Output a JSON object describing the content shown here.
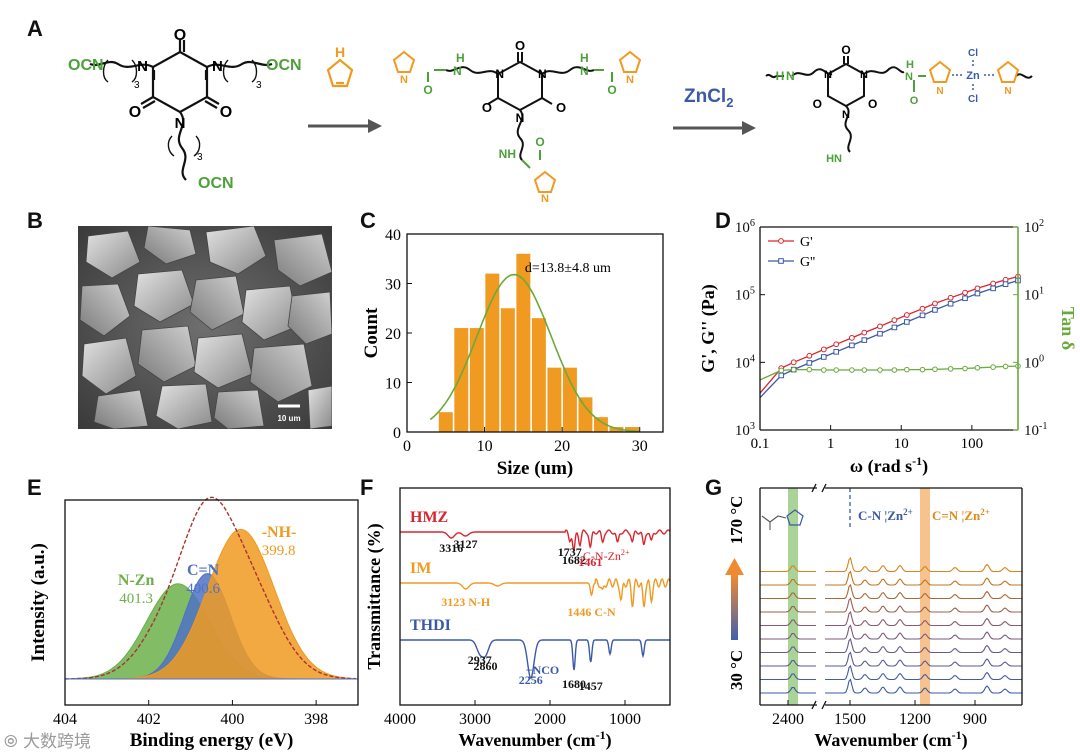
{
  "panel_labels": {
    "A": "A",
    "B": "B",
    "C": "C",
    "D": "D",
    "E": "E",
    "F": "F",
    "G": "G"
  },
  "scheme": {
    "reactant_groups": [
      "OCN",
      "OCN",
      "OCN"
    ],
    "subscript": "3",
    "reagent_atom": "H",
    "catalyst_name": "ZnCl",
    "catalyst_sub": "2",
    "atoms": {
      "O": "O",
      "N": "N",
      "NH": "NH",
      "HN": "HN",
      "H": "H",
      "Cl": "Cl",
      "Zn": "Zn"
    }
  },
  "sem": {
    "scale_bar": "10 um"
  },
  "watermark": "大数跨境",
  "chart_data": [
    {
      "id": "C",
      "type": "bar",
      "xlabel": "Size (um)",
      "ylabel": "Count",
      "xlim": [
        0,
        33
      ],
      "ylim": [
        0,
        40
      ],
      "xticks": [
        0,
        10,
        20,
        30
      ],
      "yticks": [
        0,
        10,
        20,
        30,
        40
      ],
      "bin_centers": [
        5,
        7,
        9,
        11,
        13,
        15,
        17,
        19,
        21,
        23,
        25,
        27,
        29
      ],
      "counts": [
        4,
        21,
        21,
        32,
        25,
        36,
        23,
        13,
        13,
        7,
        3,
        1,
        1
      ],
      "fit_mean": 13.8,
      "fit_sd": 4.8,
      "fit_peak": 31.8,
      "annotation": "d=13.8±4.8 um",
      "colors": {
        "bar": "#f09a21",
        "fit": "#6aaa3a"
      }
    },
    {
      "id": "D",
      "type": "line",
      "xlabel": "ω (rad s",
      "xlabel_sup": "-1",
      "xlabel_end": ")",
      "ylabel": "G', G'' (Pa)",
      "y2label": "Tan δ",
      "xscale": "log",
      "yscale": "log",
      "xlim": [
        0.1,
        450
      ],
      "ylim": [
        1000,
        1000000
      ],
      "y2lim": [
        0.1,
        100
      ],
      "xtick_labels": [
        "0.1",
        "1",
        "10",
        "100"
      ],
      "ytick_labels": [
        {
          "base": "10",
          "exp": "3"
        },
        {
          "base": "10",
          "exp": "4"
        },
        {
          "base": "10",
          "exp": "5"
        },
        {
          "base": "10",
          "exp": "6"
        }
      ],
      "y2tick_labels": [
        {
          "base": "10",
          "exp": "-1"
        },
        {
          "base": "10",
          "exp": "0"
        },
        {
          "base": "10",
          "exp": "1"
        },
        {
          "base": "10",
          "exp": "2"
        }
      ],
      "legend": [
        "G'",
        "G''"
      ],
      "legend_position": "top-left",
      "x": [
        0.1,
        0.2,
        0.3,
        0.5,
        0.8,
        1.2,
        2,
        3,
        5,
        8,
        12,
        20,
        30,
        50,
        80,
        120,
        200,
        300,
        450
      ],
      "series": [
        {
          "name": "G'",
          "axis": "left",
          "color": "#d9262e",
          "values": [
            3500,
            8200,
            10000,
            12500,
            15500,
            18500,
            23000,
            27500,
            34000,
            42000,
            50000,
            62000,
            74000,
            90000,
            107000,
            124000,
            146000,
            166000,
            185000
          ]
        },
        {
          "name": "G''",
          "axis": "left",
          "color": "#3a5aa8",
          "values": [
            3000,
            6400,
            7800,
            9800,
            12000,
            14300,
            17800,
            21300,
            26500,
            32800,
            39500,
            49500,
            59500,
            73500,
            88500,
            104000,
            124000,
            143000,
            162000
          ]
        },
        {
          "name": "Tan δ",
          "axis": "right",
          "color": "#6aaa3a",
          "values": [
            0.55,
            0.76,
            0.78,
            0.78,
            0.77,
            0.77,
            0.77,
            0.77,
            0.77,
            0.77,
            0.78,
            0.78,
            0.79,
            0.8,
            0.81,
            0.83,
            0.85,
            0.87,
            0.88
          ]
        }
      ]
    },
    {
      "id": "E",
      "type": "area",
      "xlabel": "Binding energy (eV)",
      "ylabel": "Intensity (a.u.)",
      "xlim": [
        404,
        397
      ],
      "xticks": [
        404,
        402,
        400,
        398
      ],
      "peaks": [
        {
          "label": "N-Zn",
          "value": "401.3",
          "center": 401.3,
          "height": 0.56,
          "width": 0.75,
          "color": "#6cb04a"
        },
        {
          "label": "C=N",
          "value": "400.6",
          "center": 400.6,
          "height": 0.62,
          "width": 0.55,
          "color": "#4f72c4"
        },
        {
          "label": "-NH-",
          "value": "399.8",
          "center": 399.8,
          "height": 0.88,
          "width": 0.8,
          "color": "#f09a21"
        }
      ]
    },
    {
      "id": "F",
      "type": "line",
      "xlabel": "Wavenumber (cm",
      "xlabel_sup": "-1",
      "xlabel_end": ")",
      "ylabel": "Transmittance (%)",
      "xlim": [
        4000,
        400
      ],
      "xticks": [
        4000,
        3000,
        2000,
        1000
      ],
      "series": [
        {
          "name": "HMZ",
          "color": "#d9262e",
          "peaks": [
            {
              "text": "3316",
              "x": 3316
            },
            {
              "text": "3127",
              "x": 3127
            },
            {
              "text": "1737",
              "x": 1737
            },
            {
              "text": "1682",
              "x": 1682
            },
            {
              "text": "1461",
              "x": 1461
            }
          ],
          "extra_label": "C-N-Zn",
          "extra_sup": "2+"
        },
        {
          "name": "IM",
          "color": "#f09a21",
          "peaks": [
            {
              "text": "3123 N-H",
              "x": 3123
            },
            {
              "text": "1446 C-N",
              "x": 1446
            }
          ]
        },
        {
          "name": "THDI",
          "color": "#3a5aa8",
          "peaks": [
            {
              "text": "2937",
              "x": 2937
            },
            {
              "text": "2860",
              "x": 2860
            },
            {
              "text": "2256",
              "x": 2256
            },
            {
              "text": "−NCO",
              "x": 2256
            },
            {
              "text": "1680",
              "x": 1680
            },
            {
              "text": "1457",
              "x": 1457
            }
          ]
        }
      ]
    },
    {
      "id": "G",
      "type": "line",
      "xlabel": "Wavenumber (cm",
      "xlabel_sup": "-1",
      "xlabel_end": ")",
      "xticks": [
        "2400",
        "1500",
        "1200",
        "900"
      ],
      "temp_high": "170 °C",
      "temp_low": "30 °C",
      "band_labels": [
        {
          "text": "C-N",
          "sep": "¦",
          "ion": "Zn",
          "sup": "2+",
          "color": "#3a5aa8"
        },
        {
          "text": "C=N",
          "sep": "¦",
          "ion": "Zn",
          "sup": "2+",
          "color": "#e08a1a"
        }
      ],
      "spectra_count": 10,
      "spectra_colors": [
        "#3a5aa8",
        "#4a5aa0",
        "#5a5a96",
        "#6a5a8a",
        "#7a5a7c",
        "#8a5a6e",
        "#9a6050",
        "#aa6838",
        "#c07420",
        "#d8841c"
      ]
    }
  ]
}
